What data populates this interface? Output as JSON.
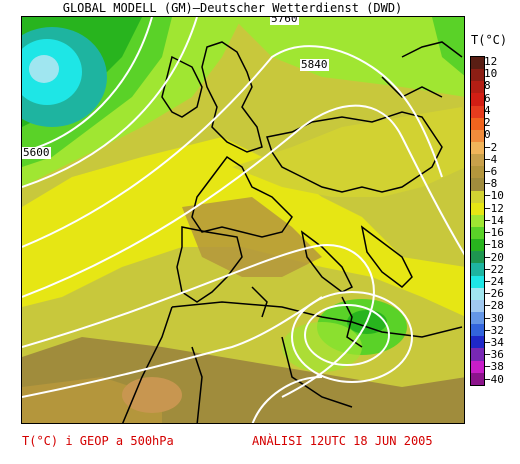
{
  "header": {
    "title": "GLOBAL MODELL (GM)—Deutscher Wetterdienst (DWD)"
  },
  "map": {
    "isolines": [
      {
        "label": "5840"
      },
      {
        "label": "5600"
      },
      {
        "label": "5760"
      }
    ]
  },
  "legend": {
    "title": "T(°C)",
    "levels": [
      "12",
      "10",
      "8",
      "6",
      "4",
      "2",
      "0",
      "−2",
      "−4",
      "−6",
      "−8",
      "−10",
      "−12",
      "−14",
      "−16",
      "−18",
      "−20",
      "−22",
      "−24",
      "−26",
      "−28",
      "−30",
      "−32",
      "−34",
      "−36",
      "−38",
      "−40"
    ],
    "colors": [
      "#5a1e14",
      "#8c1e14",
      "#b41e14",
      "#d21e14",
      "#e63c1e",
      "#f0641e",
      "#f08c3c",
      "#f0b45a",
      "#c8a04a",
      "#b4963c",
      "#a08c3c",
      "#d2d232",
      "#e6e614",
      "#a0e632",
      "#5ad228",
      "#28b41e",
      "#1e9650",
      "#1eb4a0",
      "#1ee6e6",
      "#a0e6f0",
      "#a0c8f0",
      "#6496e6",
      "#3264dc",
      "#1e28c8",
      "#7828b4",
      "#c81ec8",
      "#8c148c"
    ]
  },
  "footer": {
    "left": "T(°C) i GEOP a 500hPa",
    "right": "ANÀLISI 12UTC 18 JUN 2005"
  }
}
